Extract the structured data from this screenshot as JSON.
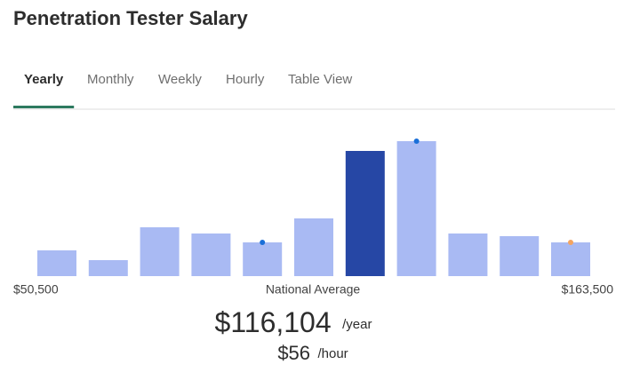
{
  "header": {
    "title": "Penetration Tester Salary"
  },
  "tabs": {
    "items": [
      "Yearly",
      "Monthly",
      "Weekly",
      "Hourly",
      "Table View"
    ],
    "selected": 0
  },
  "chart_data": {
    "type": "bar",
    "categories": [
      null,
      null,
      null,
      null,
      null,
      null,
      null,
      null,
      null,
      null,
      null
    ],
    "values": [
      29,
      18,
      55,
      48,
      38,
      65,
      141,
      152,
      48,
      45,
      38
    ],
    "colors": [
      "#a9baf3",
      "#a9baf3",
      "#a9baf3",
      "#a9baf3",
      "#a9baf3",
      "#a9baf3",
      "#2647a5",
      "#a9baf3",
      "#a9baf3",
      "#a9baf3",
      "#a9baf3"
    ],
    "ylim": [
      0,
      160
    ],
    "dots": [
      {
        "bar": 4,
        "color": "#1a6fd8"
      },
      {
        "bar": 7,
        "color": "#1a6fd8"
      },
      {
        "bar": 10,
        "color": "#f4a460"
      }
    ]
  },
  "salary": {
    "min": "$50,500",
    "label": "National Average",
    "max": "$163,500",
    "average": "$116,104",
    "average_unit": "/year",
    "hourly": "$56",
    "hourly_unit": "/hour"
  }
}
